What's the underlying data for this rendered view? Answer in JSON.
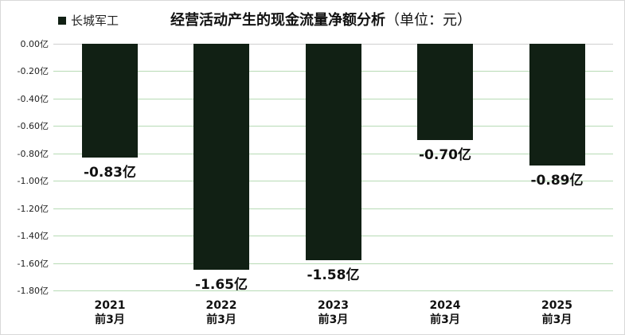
{
  "chart_data": {
    "type": "bar",
    "title": "经营活动产生的现金流量净额分析",
    "title_unit": "（单位：元）",
    "legend": [
      "长城军工"
    ],
    "legend_position": "top-left",
    "categories": [
      "2021\n前3月",
      "2022\n前3月",
      "2023\n前3月",
      "2024\n前3月",
      "2025\n前3月"
    ],
    "category_years": [
      "2021",
      "2022",
      "2023",
      "2024",
      "2025"
    ],
    "category_period": "前3月",
    "series": [
      {
        "name": "长城军工",
        "values": [
          -0.83,
          -1.65,
          -1.58,
          -0.7,
          -0.89
        ],
        "unit": "亿",
        "color": "#112014"
      }
    ],
    "data_labels": [
      "-0.83亿",
      "-1.65亿",
      "-1.58亿",
      "-0.70亿",
      "-0.89亿"
    ],
    "yticks": [
      "0.00亿",
      "-0.20亿",
      "-0.40亿",
      "-0.60亿",
      "-0.80亿",
      "-1.00亿",
      "-1.20亿",
      "-1.40亿",
      "-1.60亿",
      "-1.80亿"
    ],
    "ytick_values": [
      0,
      -0.2,
      -0.4,
      -0.6,
      -0.8,
      -1.0,
      -1.2,
      -1.4,
      -1.6,
      -1.8
    ],
    "ylim": [
      -1.8,
      0
    ],
    "xlabel": "",
    "ylabel": "",
    "grid": true,
    "grid_color": "#b7dbb5"
  }
}
